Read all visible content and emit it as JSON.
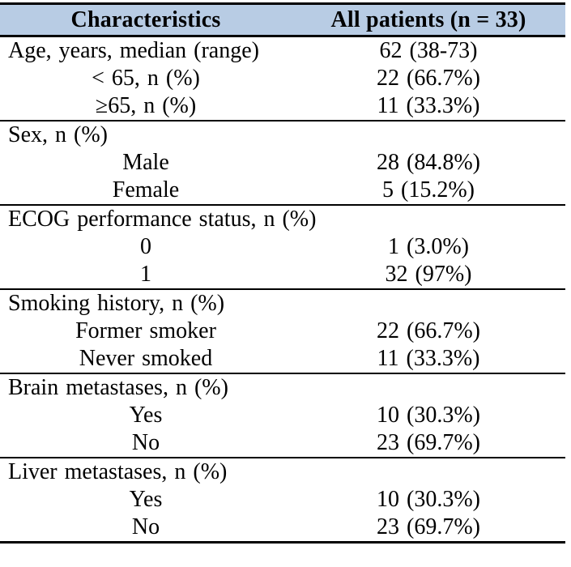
{
  "table": {
    "header": {
      "characteristics_label": "Characteristics",
      "patients_label": "All patients (n = 33)"
    },
    "sections": [
      {
        "rows": [
          {
            "label": "Age, years, median (range)",
            "value": "62 (38-73)",
            "indent": false
          },
          {
            "label": "< 65, n (%)",
            "value": "22 (66.7%)",
            "indent": true
          },
          {
            "label": "≥65, n (%)",
            "value": "11 (33.3%)",
            "indent": true
          }
        ]
      },
      {
        "rows": [
          {
            "label": "Sex, n (%)",
            "value": "",
            "indent": false
          },
          {
            "label": "Male",
            "value": "28 (84.8%)",
            "indent": true
          },
          {
            "label": "Female",
            "value": "5 (15.2%)",
            "indent": true
          }
        ]
      },
      {
        "rows": [
          {
            "label": "ECOG performance status, n (%)",
            "value": "",
            "indent": false
          },
          {
            "label": "0",
            "value": "1 (3.0%)",
            "indent": true
          },
          {
            "label": "1",
            "value": "32 (97%)",
            "indent": true
          }
        ]
      },
      {
        "rows": [
          {
            "label": "Smoking history, n (%)",
            "value": "",
            "indent": false
          },
          {
            "label": "Former smoker",
            "value": "22 (66.7%)",
            "indent": true
          },
          {
            "label": "Never smoked",
            "value": "11 (33.3%)",
            "indent": true
          }
        ]
      },
      {
        "rows": [
          {
            "label": "Brain metastases, n (%)",
            "value": "",
            "indent": false
          },
          {
            "label": "Yes",
            "value": "10 (30.3%)",
            "indent": true
          },
          {
            "label": "No",
            "value": "23 (69.7%)",
            "indent": true
          }
        ]
      },
      {
        "rows": [
          {
            "label": "Liver metastases, n (%)",
            "value": "",
            "indent": false
          },
          {
            "label": "Yes",
            "value": "10 (30.3%)",
            "indent": true
          },
          {
            "label": "No",
            "value": "23 (69.7%)",
            "indent": true
          }
        ]
      }
    ],
    "colors": {
      "header_bg": "#b8cce4",
      "border": "#000000",
      "text": "#000000"
    }
  }
}
